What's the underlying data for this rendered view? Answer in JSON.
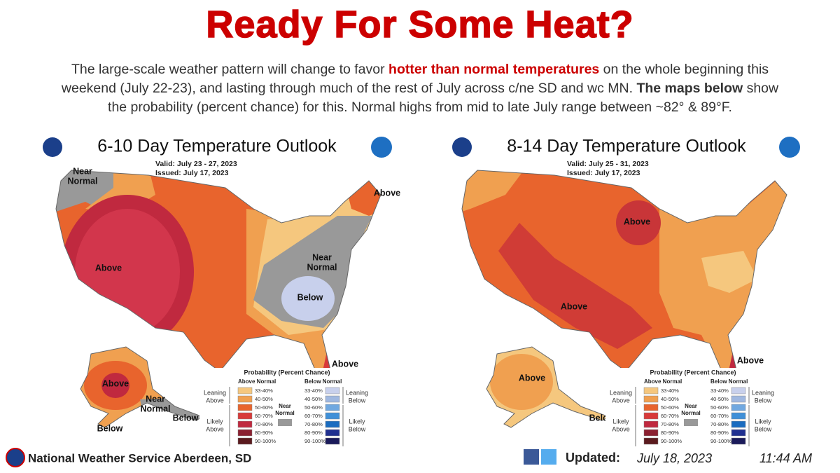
{
  "header": {
    "title": "Ready For Some Heat?",
    "description": [
      [
        {
          "text": "The large-scale weather pattern will change to favor ",
          "emphasis": "normal"
        },
        {
          "text": "hotter than normal temperatures",
          "emphasis": "red-bold"
        },
        {
          "text": " on the whole beginning this",
          "emphasis": "normal"
        }
      ],
      [
        {
          "text": "weekend (July 22-23), and lasting through much of the rest of July across c/ne SD and wc MN. ",
          "emphasis": "normal"
        },
        {
          "text": "The maps below",
          "emphasis": "bold"
        },
        {
          "text": " show",
          "emphasis": "normal"
        }
      ],
      [
        {
          "text": "the probability (percent chance) for this. Normal highs from mid to late July range between ~82° & 89°F.",
          "emphasis": "normal"
        }
      ]
    ]
  },
  "maps": [
    {
      "title": "6-10 Day Temperature Outlook",
      "valid": "Valid:  July 23 - 27, 2023",
      "issued": "Issued:  July 17, 2023",
      "labels": [
        [
          "Near",
          "Normal"
        ],
        [
          "Above"
        ],
        [
          "Above"
        ],
        [
          "Near",
          "Normal"
        ],
        [
          "Below"
        ],
        [
          "Above"
        ],
        [
          "Above"
        ],
        [
          "Near",
          "Normal"
        ],
        [
          "Below"
        ],
        [
          "Below"
        ]
      ]
    },
    {
      "title": "8-14 Day Temperature Outlook",
      "valid": "Valid:  July 25 - 31, 2023",
      "issued": "Issued:  July 17, 2023",
      "labels": [
        [
          "Above"
        ],
        [
          "Above"
        ],
        [
          "Above"
        ],
        [
          "Above"
        ],
        [
          "Below"
        ]
      ]
    }
  ],
  "legend": {
    "title": "Probability (Percent Chance)",
    "above_header": "Above Normal",
    "below_header": "Below Normal",
    "leaning_above": [
      "Leaning",
      "Above"
    ],
    "likely_above": [
      "Likely",
      "Above"
    ],
    "near_normal": [
      "Near",
      "Normal"
    ],
    "leaning_below": [
      "Leaning",
      "Below"
    ],
    "likely_below": [
      "Likely",
      "Below"
    ],
    "near_color": "#999999",
    "bins": [
      "33-40%",
      "40-50%",
      "50-60%",
      "60-70%",
      "70-80%",
      "80-90%",
      "90-100%"
    ],
    "above_colors": [
      "#f5c77e",
      "#f0a050",
      "#e8642d",
      "#d83a3a",
      "#c0293f",
      "#8b2030",
      "#5a1a1e"
    ],
    "below_colors": [
      "#c8d0ec",
      "#a0b8e0",
      "#70a8e0",
      "#4090d8",
      "#1a6cc0",
      "#203090",
      "#1a1a5a"
    ]
  },
  "footer": {
    "office": "National Weather Service Aberdeen, SD",
    "updated": "Updated:",
    "date": "July 18, 2023",
    "time": "11:44 AM"
  }
}
